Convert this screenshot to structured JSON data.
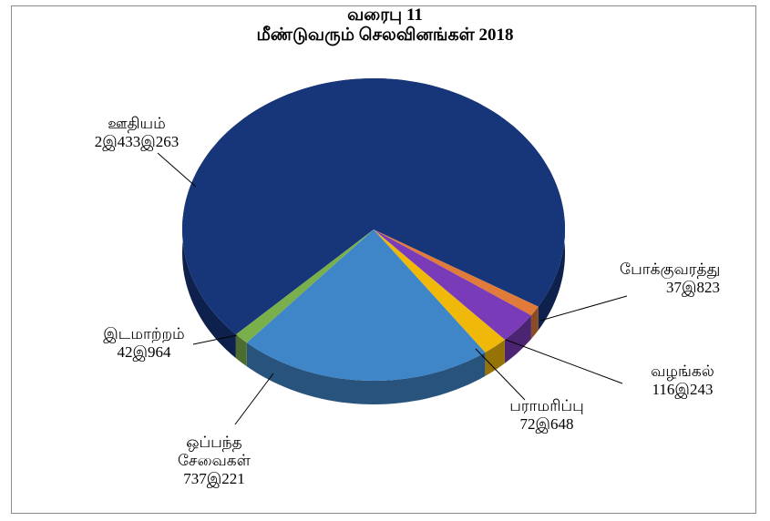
{
  "chart_data": {
    "type": "pie",
    "title": "வரைபு 11",
    "subtitle": "மீண்டுவரும் செலவினங்கள் 2018",
    "categories": [
      "ஊதியம்",
      "போக்குவரத்து",
      "வழங்கல்",
      "பராமரிப்பு",
      "ஒப்பந்த சேவைகள்",
      "இடமாற்றம்"
    ],
    "values": [
      2433263,
      37823,
      116243,
      72648,
      737221,
      42964
    ],
    "value_labels": [
      "2இ433இ263",
      "37இ823",
      "116இ243",
      "72இ648",
      "737இ221",
      "42இ964"
    ],
    "colors": [
      "#17367a",
      "#e07b39",
      "#7a3bb8",
      "#f0b90a",
      "#3f86c8",
      "#7ab04c"
    ]
  }
}
